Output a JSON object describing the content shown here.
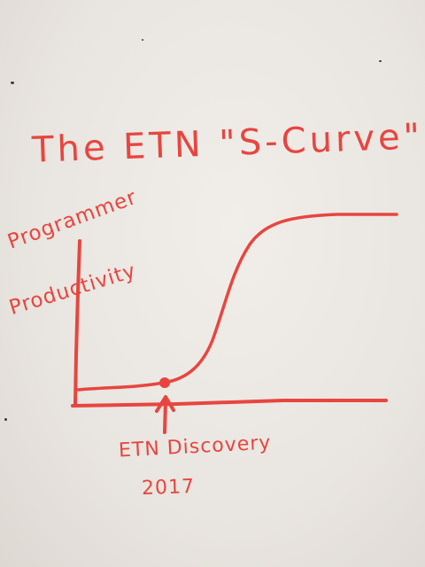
{
  "whiteboard": {
    "title": "The ETN \"S-Curve\"",
    "y_label_line1": "Programmer",
    "y_label_line2": "Productivity",
    "annotation_line1": "ETN Discovery",
    "annotation_line2": "2017"
  },
  "colors": {
    "marker": "#e8453f",
    "board": "#ebe7e2"
  }
}
